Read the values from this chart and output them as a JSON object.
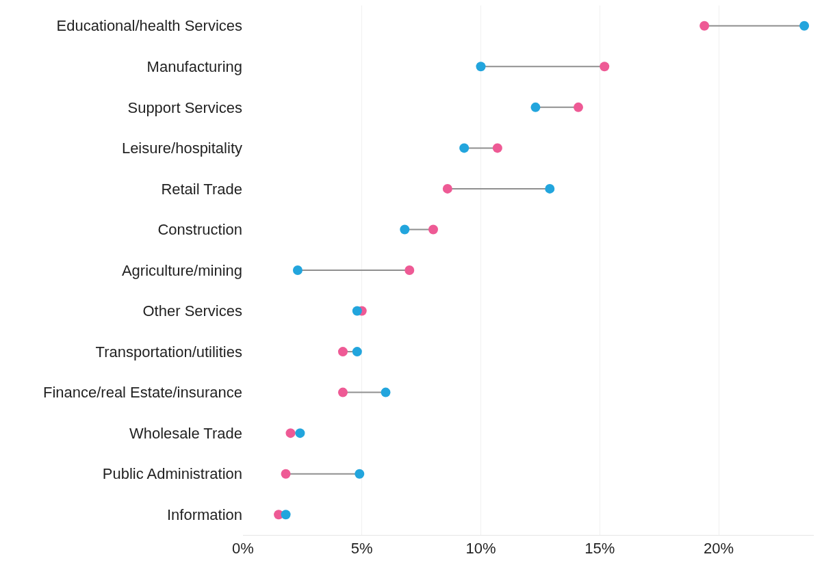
{
  "chart_data": {
    "type": "scatter",
    "orientation": "horizontal",
    "marker": "circle",
    "grid": "x",
    "categories": [
      "Educational/health Services",
      "Manufacturing",
      "Support Services",
      "Leisure/hospitality",
      "Retail Trade",
      "Construction",
      "Agriculture/mining",
      "Other Services",
      "Transportation/utilities",
      "Finance/real Estate/insurance",
      "Wholesale Trade",
      "Public Administration",
      "Information"
    ],
    "series": [
      {
        "color": "#ee5a95",
        "values": [
          19.4,
          15.2,
          14.1,
          10.7,
          8.6,
          8.0,
          7.0,
          5.0,
          4.2,
          4.2,
          2.0,
          1.8,
          1.5
        ]
      },
      {
        "color": "#22a5dd",
        "values": [
          23.6,
          10.0,
          12.3,
          9.3,
          12.9,
          6.8,
          2.3,
          4.8,
          4.8,
          6.0,
          2.4,
          4.9,
          1.8
        ]
      }
    ],
    "xlim": [
      0,
      24
    ],
    "xticks": [
      {
        "value": 0,
        "label": "0%"
      },
      {
        "value": 5,
        "label": "5%"
      },
      {
        "value": 10,
        "label": "10%"
      },
      {
        "value": 15,
        "label": "15%"
      },
      {
        "value": 20,
        "label": "20%"
      }
    ]
  }
}
